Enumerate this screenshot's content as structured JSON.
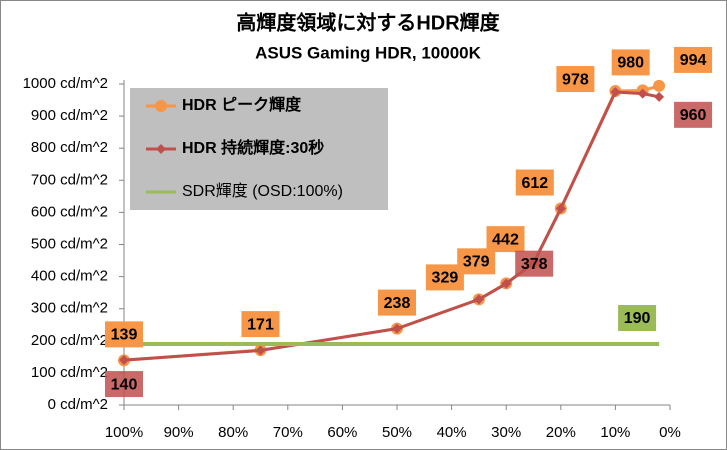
{
  "chart_data": {
    "type": "line",
    "title": "高輝度領域に対するHDR輝度",
    "subtitle": "ASUS Gaming HDR, 10000K",
    "xlim": [
      100,
      0
    ],
    "xticks": [
      {
        "value": 100,
        "label": "100%"
      },
      {
        "value": 90,
        "label": "90%"
      },
      {
        "value": 80,
        "label": "80%"
      },
      {
        "value": 70,
        "label": "70%"
      },
      {
        "value": 60,
        "label": "60%"
      },
      {
        "value": 50,
        "label": "50%"
      },
      {
        "value": 40,
        "label": "40%"
      },
      {
        "value": 30,
        "label": "30%"
      },
      {
        "value": 20,
        "label": "20%"
      },
      {
        "value": 10,
        "label": "10%"
      },
      {
        "value": 0,
        "label": "0%"
      }
    ],
    "ylim": [
      0,
      1000
    ],
    "yticks": [
      {
        "value": 0,
        "label": "0 cd/m^2"
      },
      {
        "value": 100,
        "label": "100 cd/m^2"
      },
      {
        "value": 200,
        "label": "200 cd/m^2"
      },
      {
        "value": 300,
        "label": "300 cd/m^2"
      },
      {
        "value": 400,
        "label": "400 cd/m^2"
      },
      {
        "value": 500,
        "label": "500 cd/m^2"
      },
      {
        "value": 600,
        "label": "600 cd/m^2"
      },
      {
        "value": 700,
        "label": "700 cd/m^2"
      },
      {
        "value": 800,
        "label": "800 cd/m^2"
      },
      {
        "value": 900,
        "label": "900 cd/m^2"
      },
      {
        "value": 1000,
        "label": "1000 cd/m^2"
      }
    ],
    "grid": false,
    "legend": "top-left",
    "series": [
      {
        "name": "HDR ピーク輝度",
        "color": "#f79646",
        "marker": "circle",
        "x": [
          100,
          75,
          50,
          35,
          30,
          25,
          20,
          10,
          5,
          2
        ],
        "values": [
          139,
          171,
          238,
          329,
          379,
          442,
          612,
          978,
          980,
          994
        ],
        "value_labels": [
          "139",
          "171",
          "238",
          "329",
          "379",
          "442",
          "612",
          "978",
          "980",
          "994"
        ]
      },
      {
        "name": "HDR 持続輝度:30秒",
        "color": "#c0504d",
        "marker": "diamond",
        "x": [
          100,
          75,
          50,
          35,
          30,
          25,
          20,
          10,
          5,
          2
        ],
        "values": [
          140,
          170,
          238,
          329,
          378,
          442,
          612,
          975,
          970,
          960
        ],
        "value_labels": [
          "140",
          null,
          null,
          null,
          "378",
          null,
          null,
          null,
          null,
          "960"
        ]
      },
      {
        "name": "SDR輝度 (OSD:100%)",
        "color": "#9bbb59",
        "marker": "none",
        "x": [
          100,
          2
        ],
        "values": [
          190,
          190
        ],
        "value_labels": [
          null,
          "190"
        ]
      }
    ]
  }
}
